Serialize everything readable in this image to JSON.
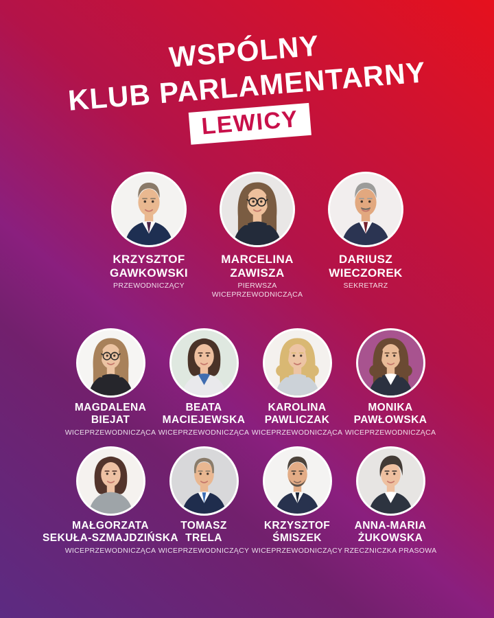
{
  "title": {
    "line1": "WSPÓLNY",
    "line2": "KLUB PARLAMENTARNY",
    "badge": "LEWICY"
  },
  "colors": {
    "badge_bg": "#ffffff",
    "badge_text": "#c8104a",
    "text": "#ffffff",
    "gradient_stops": [
      "#e6111d",
      "#b31349",
      "#8a1f7e",
      "#72206d",
      "#5c2b82"
    ]
  },
  "people": [
    {
      "name": "KRZYSZTOF\nGAWKOWSKI",
      "role": "PRZEWODNICZĄCY",
      "avatar": {
        "bg": "#f4f3f1",
        "skin": "#e9b890",
        "hair": "#8a7a68",
        "style": "short",
        "suit": "#1e2f52",
        "shirt": "#ffffff",
        "tie": "#50284a"
      }
    },
    {
      "name": "MARCELINA\nZAWISZA",
      "role": "PIERWSZA\nWICEPRZEWODNICZĄCA",
      "avatar": {
        "bg": "#e9e7e6",
        "skin": "#eec09c",
        "hair": "#7a5c42",
        "style": "long",
        "suit": "#232b3a",
        "glasses": true
      }
    },
    {
      "name": "DARIUSZ\nWIECZOREK",
      "role": "SEKRETARZ",
      "avatar": {
        "bg": "#f2eeee",
        "skin": "#e2a87f",
        "hair": "#9c9c9a",
        "style": "short",
        "suit": "#2b3452",
        "shirt": "#ffffff",
        "tie": "#77222e",
        "mustache": true
      }
    },
    {
      "name": "MAGDALENA\nBIEJAT",
      "role": "WICEPRZEWODNICZĄCA",
      "avatar": {
        "bg": "#f6f5f3",
        "skin": "#ecc3a2",
        "hair": "#a8815a",
        "style": "long",
        "suit": "#26262c",
        "glasses": true
      }
    },
    {
      "name": "BEATA\nMACIEJEWSKA",
      "role": "WICEPRZEWODNICZĄCA",
      "avatar": {
        "bg": "#dfe8e0",
        "skin": "#eec0a0",
        "hair": "#4a3328",
        "style": "bob",
        "suit": "#e9e9ec",
        "shirt": "#3f6db0"
      }
    },
    {
      "name": "KAROLINA\nPAWLICZAK",
      "role": "WICEPRZEWODNICZĄCA",
      "avatar": {
        "bg": "#f4f1ee",
        "skin": "#edc4a4",
        "hair": "#d9b873",
        "style": "curly",
        "suit": "#ccd2d8"
      }
    },
    {
      "name": "MONIKA\nPAWŁOWSKA",
      "role": "WICEPRZEWODNICZĄCA",
      "avatar": {
        "bg": "#a8538f",
        "skin": "#e9bb97",
        "hair": "#6b4a33",
        "style": "curly",
        "suit": "#2b3140",
        "shirt": "#ffffff"
      }
    },
    {
      "name": "MAŁGORZATA\nSEKUŁA-SZMAJDZIŃSKA",
      "role": "WICEPRZEWODNICZĄCA",
      "avatar": {
        "bg": "#f5f2ef",
        "skin": "#eec2a4",
        "hair": "#53352c",
        "style": "bob",
        "suit": "#9ea4a8"
      }
    },
    {
      "name": "TOMASZ\nTRELA",
      "role": "WICEPRZEWODNICZĄCY",
      "avatar": {
        "bg": "#d8d8da",
        "skin": "#e9b791",
        "hair": "#8a7c6a",
        "style": "balding",
        "suit": "#1f2d4d",
        "shirt": "#ffffff",
        "tie": "#3b6cb3"
      }
    },
    {
      "name": "KRZYSZTOF\nŚMISZEK",
      "role": "WICEPRZEWODNICZĄCY",
      "avatar": {
        "bg": "#f4f3f2",
        "skin": "#e3ac86",
        "hair": "#4d443c",
        "style": "short",
        "suit": "#28324e",
        "shirt": "#ffffff",
        "tie": "#1c2434",
        "beard": "#5d544c"
      }
    },
    {
      "name": "ANNA-MARIA\nŻUKOWSKA",
      "role": "RZECZNICZKA PRASOWA",
      "avatar": {
        "bg": "#e7e5e3",
        "skin": "#eec0a0",
        "hair": "#423a35",
        "style": "pixie",
        "suit": "#2d3440",
        "shirt": "#ffffff"
      }
    }
  ]
}
